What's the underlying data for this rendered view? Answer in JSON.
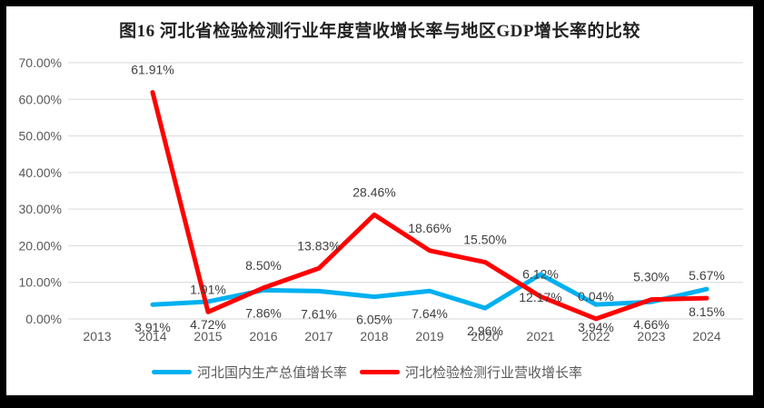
{
  "window": {
    "border_color": "#000000",
    "chart_background": "#ffffff"
  },
  "chart_data": {
    "type": "line",
    "title": "图16 河北省检验检测行业年度营收增长率与地区GDP增长率的比较",
    "categories": [
      "2013",
      "2014",
      "2015",
      "2016",
      "2017",
      "2018",
      "2019",
      "2020",
      "2021",
      "2022",
      "2023",
      "2024"
    ],
    "series": [
      {
        "name": "河北国内生产总值增长率",
        "color": "#00B0F0",
        "label_position": "below",
        "values": [
          null,
          3.91,
          4.72,
          7.86,
          7.61,
          6.05,
          7.64,
          2.96,
          12.17,
          3.94,
          4.66,
          8.15
        ],
        "labels": [
          null,
          "3.91%",
          "4.72%",
          "7.86%",
          "7.61%",
          "6.05%",
          "7.64%",
          "2.96%",
          "12.17%",
          "3.94%",
          "4.66%",
          "8.15%"
        ]
      },
      {
        "name": "河北检验检测行业营收增长率",
        "color": "#FF0000",
        "label_position": "above",
        "values": [
          null,
          61.91,
          1.91,
          8.5,
          13.83,
          28.46,
          18.66,
          15.5,
          6.12,
          0.04,
          5.3,
          5.67
        ],
        "labels": [
          null,
          "61.91%",
          "1.91%",
          "8.50%",
          "13.83%",
          "28.46%",
          "18.66%",
          "15.50%",
          "6.12%",
          "0.04%",
          "5.30%",
          "5.67%"
        ]
      }
    ],
    "y_axis": {
      "min": 0,
      "max": 70,
      "step": 10,
      "tick_labels": [
        "0.00%",
        "10.00%",
        "20.00%",
        "30.00%",
        "40.00%",
        "50.00%",
        "60.00%",
        "70.00%"
      ]
    },
    "x_axis": {
      "tick_labels": [
        "2013",
        "2014",
        "2015",
        "2016",
        "2017",
        "2018",
        "2019",
        "2020",
        "2021",
        "2022",
        "2023",
        "2024"
      ]
    },
    "legend_position": "bottom",
    "gridlines": true,
    "colors": {
      "gridline": "#D9D9D9",
      "axis_text": "#595959",
      "data_label_text": "#404040",
      "title_text": "#222222"
    }
  }
}
